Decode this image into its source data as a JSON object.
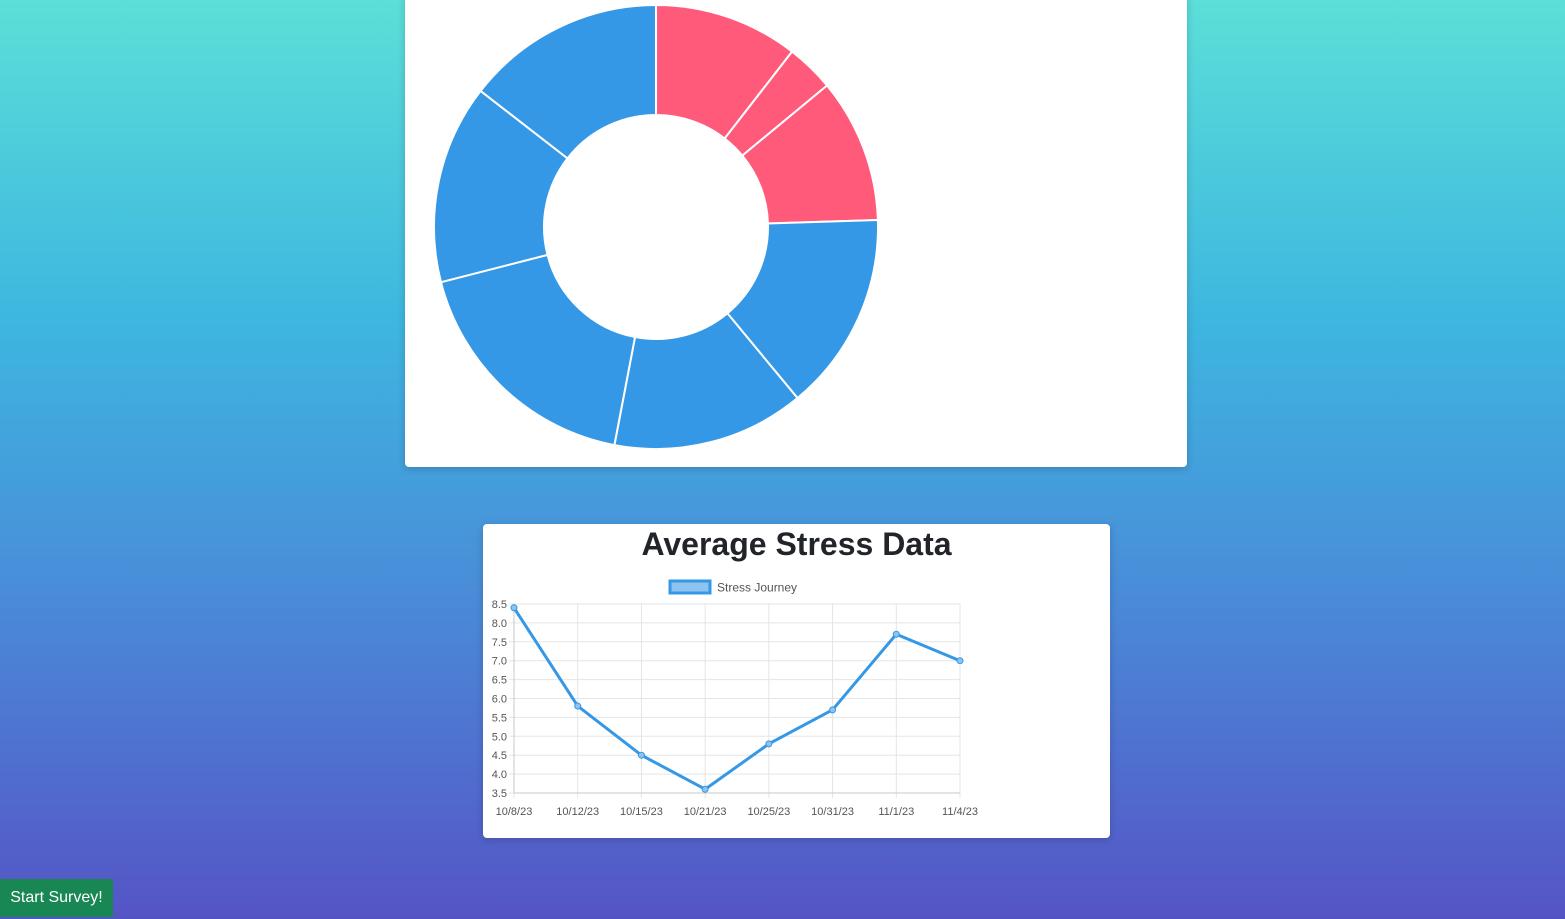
{
  "donut_chart": {
    "chart_data": {
      "type": "pie",
      "variant": "doughnut",
      "values": [
        10.5,
        3.5,
        10.5,
        14.5,
        14,
        18,
        14.5,
        14.5
      ],
      "colors": [
        "#ff5a79",
        "#ff5a79",
        "#ff5a79",
        "#3498e6",
        "#3498e6",
        "#3498e6",
        "#3498e6",
        "#3498e6"
      ],
      "title": "",
      "legend": "none"
    }
  },
  "line_chart": {
    "title": "Average Stress Data",
    "chart_data": {
      "type": "line",
      "title": "Average Stress Data",
      "categories": [
        "10/8/23",
        "10/12/23",
        "10/15/23",
        "10/21/23",
        "10/25/23",
        "10/31/23",
        "11/1/23",
        "11/4/23"
      ],
      "series": [
        {
          "name": "Stress Journey",
          "values": [
            8.4,
            5.8,
            4.5,
            3.6,
            4.8,
            5.7,
            7.7,
            7.0
          ],
          "color": "#3498e6"
        }
      ],
      "yticks": [
        "8.5",
        "8.0",
        "7.5",
        "7.0",
        "6.5",
        "6.0",
        "5.5",
        "5.0",
        "4.5",
        "4.0",
        "3.5"
      ],
      "ylim": [
        3.5,
        8.5
      ],
      "grid": true,
      "legend": "top"
    }
  },
  "start_survey_label": "Start Survey!"
}
